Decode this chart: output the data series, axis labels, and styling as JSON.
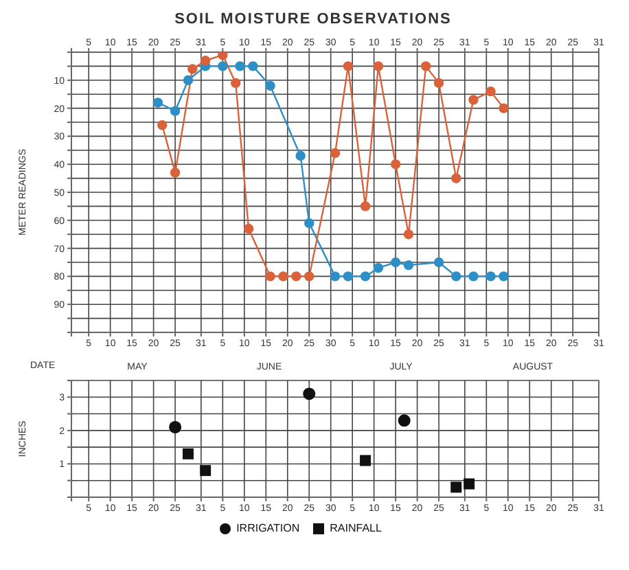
{
  "chart_data": [
    {
      "type": "line",
      "title": "SOIL MOISTURE OBSERVATIONS",
      "ylabel": "METER READINGS",
      "xlabel": "DATE",
      "annotations": [
        "MAY",
        "JUNE",
        "JULY",
        "AUGUST"
      ],
      "xlim": [
        "--05-01",
        "--08-31"
      ],
      "xticks": [
        {
          "value": "--05-01",
          "label": null
        },
        {
          "value": "--05-05",
          "label": "5"
        },
        {
          "value": "--05-10",
          "label": "10"
        },
        {
          "value": "--05-15",
          "label": "15"
        },
        {
          "value": "--05-20",
          "label": "20"
        },
        {
          "value": "--05-25",
          "label": "25"
        },
        {
          "value": "--05-31",
          "label": "31"
        },
        {
          "value": "--06-05",
          "label": "5"
        },
        {
          "value": "--06-10",
          "label": "10"
        },
        {
          "value": "--06-15",
          "label": "15"
        },
        {
          "value": "--06-20",
          "label": "20"
        },
        {
          "value": "--06-25",
          "label": "25"
        },
        {
          "value": "--06-30",
          "label": "30"
        },
        {
          "value": "--07-05",
          "label": "5"
        },
        {
          "value": "--07-10",
          "label": "10"
        },
        {
          "value": "--07-15",
          "label": "15"
        },
        {
          "value": "--07-20",
          "label": "20"
        },
        {
          "value": "--07-25",
          "label": "25"
        },
        {
          "value": "--07-31",
          "label": "31"
        },
        {
          "value": "--08-05",
          "label": "5"
        },
        {
          "value": "--08-10",
          "label": "10"
        },
        {
          "value": "--08-15",
          "label": "15"
        },
        {
          "value": "--08-20",
          "label": "20"
        },
        {
          "value": "--08-25",
          "label": "25"
        },
        {
          "value": "--08-31",
          "label": "31"
        }
      ],
      "x2lim": [
        "--05-01",
        "--08-31"
      ],
      "x2ticks": [
        {
          "value": "--05-01",
          "label": null
        },
        {
          "value": "--05-05",
          "label": "5"
        },
        {
          "value": "--05-10",
          "label": "10"
        },
        {
          "value": "--05-15",
          "label": "15"
        },
        {
          "value": "--05-20",
          "label": "20"
        },
        {
          "value": "--05-25",
          "label": "25"
        },
        {
          "value": "--05-31",
          "label": "31"
        },
        {
          "value": "--06-05",
          "label": "5"
        },
        {
          "value": "--06-10",
          "label": "10"
        },
        {
          "value": "--06-15",
          "label": "15"
        },
        {
          "value": "--06-20",
          "label": "20"
        },
        {
          "value": "--06-25",
          "label": "25"
        },
        {
          "value": "--06-30",
          "label": "30"
        },
        {
          "value": "--07-05",
          "label": "5"
        },
        {
          "value": "--07-10",
          "label": "10"
        },
        {
          "value": "--07-15",
          "label": "15"
        },
        {
          "value": "--07-20",
          "label": "20"
        },
        {
          "value": "--07-25",
          "label": "25"
        },
        {
          "value": "--07-31",
          "label": "31"
        },
        {
          "value": "--08-05",
          "label": "5"
        },
        {
          "value": "--08-10",
          "label": "10"
        },
        {
          "value": "--08-15",
          "label": "15"
        },
        {
          "value": "--08-20",
          "label": "20"
        },
        {
          "value": "--08-25",
          "label": "25"
        },
        {
          "value": "--08-31",
          "label": "31"
        }
      ],
      "ylim": [
        100,
        0
      ],
      "yticks": [
        {
          "value": 0,
          "label": null
        },
        {
          "value": 5,
          "label": null
        },
        10,
        {
          "value": 15,
          "label": null
        },
        20,
        {
          "value": 25,
          "label": null
        },
        30,
        {
          "value": 35,
          "label": null
        },
        40,
        {
          "value": 45,
          "label": null
        },
        50,
        {
          "value": 55,
          "label": null
        },
        60,
        {
          "value": 65,
          "label": null
        },
        70,
        {
          "value": 75,
          "label": null
        },
        80,
        {
          "value": 85,
          "label": null
        },
        90,
        {
          "value": 95,
          "label": null
        },
        {
          "value": 100,
          "label": null
        }
      ],
      "grid": true,
      "legend": false,
      "marker": "circle",
      "line_style": "solid",
      "series": [
        {
          "color": "#2e8fc7",
          "x": [
            "--05-21",
            "--05-25",
            "--05-28",
            "--06-01",
            "--06-05",
            "--06-09",
            "--06-12",
            "--06-16",
            "--06-23",
            "--06-25",
            "--07-01",
            "--07-04",
            "--07-08",
            "--07-11",
            "--07-15",
            "--07-18",
            "--07-25",
            "--07-29",
            "--08-02",
            "--08-06",
            "--08-09"
          ],
          "values": [
            18,
            21,
            10,
            5,
            5,
            5,
            5,
            12,
            37,
            61,
            80,
            80,
            80,
            77,
            75,
            76,
            75,
            80,
            80,
            80,
            80
          ]
        },
        {
          "color": "#d9623b",
          "x": [
            "--05-22",
            "--05-25",
            "--05-29",
            "--06-01",
            "--06-05",
            "--06-08",
            "--06-11",
            "--06-16",
            "--06-19",
            "--06-22",
            "--06-25",
            "--07-01",
            "--07-04",
            "--07-08",
            "--07-11",
            "--07-15",
            "--07-18",
            "--07-22",
            "--07-25",
            "--07-29",
            "--08-02",
            "--08-06",
            "--08-09"
          ],
          "values": [
            26,
            43,
            6,
            3,
            1,
            11,
            63,
            80,
            80,
            80,
            80,
            36,
            5,
            55,
            5,
            40,
            65,
            5,
            11,
            45,
            17,
            14,
            20
          ]
        }
      ]
    },
    {
      "type": "scatter",
      "ylabel": "INCHES",
      "xlim": [
        "--05-01",
        "--08-31"
      ],
      "xticks": [
        {
          "value": "--05-01",
          "label": null
        },
        {
          "value": "--05-05",
          "label": "5"
        },
        {
          "value": "--05-10",
          "label": "10"
        },
        {
          "value": "--05-15",
          "label": "15"
        },
        {
          "value": "--05-20",
          "label": "20"
        },
        {
          "value": "--05-25",
          "label": "25"
        },
        {
          "value": "--05-31",
          "label": "31"
        },
        {
          "value": "--06-05",
          "label": "5"
        },
        {
          "value": "--06-10",
          "label": "10"
        },
        {
          "value": "--06-15",
          "label": "15"
        },
        {
          "value": "--06-20",
          "label": "20"
        },
        {
          "value": "--06-25",
          "label": "25"
        },
        {
          "value": "--06-30",
          "label": "30"
        },
        {
          "value": "--07-05",
          "label": "5"
        },
        {
          "value": "--07-10",
          "label": "10"
        },
        {
          "value": "--07-15",
          "label": "15"
        },
        {
          "value": "--07-20",
          "label": "20"
        },
        {
          "value": "--07-25",
          "label": "25"
        },
        {
          "value": "--07-31",
          "label": "31"
        },
        {
          "value": "--08-05",
          "label": "5"
        },
        {
          "value": "--08-10",
          "label": "10"
        },
        {
          "value": "--08-15",
          "label": "15"
        },
        {
          "value": "--08-20",
          "label": "20"
        },
        {
          "value": "--08-25",
          "label": "25"
        },
        {
          "value": "--08-31",
          "label": "31"
        }
      ],
      "ylim": [
        0,
        3.5
      ],
      "yticks": [
        {
          "value": 0,
          "label": null
        },
        {
          "value": 0.5,
          "label": null
        },
        1,
        {
          "value": 1.5,
          "label": null
        },
        2,
        {
          "value": 2.5,
          "label": null
        },
        3,
        {
          "value": 3.5,
          "label": null
        }
      ],
      "grid": true,
      "legend": "bottom",
      "series": [
        {
          "name": "RAINFALL",
          "color": "#111111",
          "marker": "square",
          "x": [
            "--05-28",
            "--06-01",
            "--07-08",
            "--07-29",
            "--08-01"
          ],
          "values": [
            1.3,
            0.8,
            1.1,
            0.3,
            0.4
          ]
        },
        {
          "name": "IRRIGATION",
          "color": "#111111",
          "marker": "circle",
          "x": [
            "--05-25",
            "--06-25",
            "--07-17"
          ],
          "values": [
            2.1,
            3.1,
            2.3
          ]
        }
      ]
    }
  ]
}
